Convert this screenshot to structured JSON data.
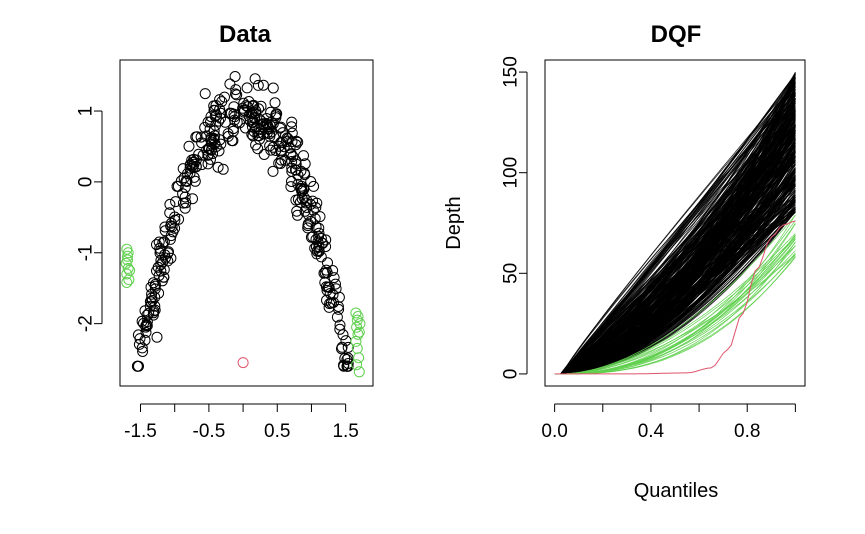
{
  "colors": {
    "normal": "#000000",
    "outlier": "#df536b",
    "tail": "#61d04f"
  },
  "chart_data": [
    {
      "type": "scatter",
      "title": "Data",
      "xlabel": "",
      "ylabel": "",
      "xlim": [
        -1.8,
        1.9
      ],
      "ylim": [
        -2.88,
        1.72
      ],
      "xticks": [
        -1.5,
        -1.0,
        -0.5,
        0.0,
        0.5,
        1.0,
        1.5
      ],
      "xtick_labels": [
        "-1.5",
        "",
        "-0.5",
        "",
        "0.5",
        "",
        "1.5"
      ],
      "yticks": [
        -2,
        -1,
        0,
        1
      ],
      "ytick_labels": [
        "-2",
        "-1",
        "0",
        "1"
      ],
      "curve": {
        "formula": "y = 1.0 - 1.5 * x^2",
        "n_points": 400,
        "x_range": [
          -1.55,
          1.55
        ],
        "noise_sd": 0.24
      },
      "tail_points": [
        [
          -1.7,
          -0.95
        ],
        [
          -1.69,
          -1.05
        ],
        [
          -1.71,
          -1.15
        ],
        [
          -1.68,
          -1.22
        ],
        [
          -1.7,
          -1.3
        ],
        [
          -1.67,
          -1.38
        ],
        [
          -1.69,
          -1.1
        ],
        [
          -1.66,
          -1.25
        ],
        [
          -1.7,
          -1.42
        ],
        [
          -1.68,
          -1.0
        ],
        [
          1.65,
          -1.85
        ],
        [
          1.67,
          -1.95
        ],
        [
          1.66,
          -2.05
        ],
        [
          1.68,
          -2.15
        ],
        [
          1.65,
          -2.25
        ],
        [
          1.7,
          -2.12
        ],
        [
          1.67,
          -2.35
        ],
        [
          1.69,
          -2.48
        ],
        [
          1.66,
          -2.58
        ],
        [
          1.7,
          -2.68
        ],
        [
          1.71,
          -2.0
        ],
        [
          1.68,
          -1.9
        ]
      ],
      "outlier_points": [
        [
          0.0,
          -2.55
        ]
      ],
      "grid": false
    },
    {
      "type": "line",
      "title": "DQF",
      "xlabel": "Quantiles",
      "ylabel": "Depth",
      "xlim": [
        -0.04,
        1.04
      ],
      "ylim": [
        -6.0,
        156.0
      ],
      "xticks": [
        0.0,
        0.2,
        0.4,
        0.6,
        0.8,
        1.0
      ],
      "xtick_labels": [
        "0.0",
        "",
        "0.4",
        "",
        "0.8",
        ""
      ],
      "yticks": [
        0,
        50,
        100,
        150
      ],
      "ytick_labels": [
        "0",
        "50",
        "100",
        "150"
      ],
      "series": [
        {
          "group": "normal",
          "count": 380,
          "end_depth_range": [
            80,
            150
          ],
          "curvature_range": [
            0.9,
            1.9
          ]
        },
        {
          "group": "tail",
          "count": 22,
          "end_depth_range": [
            57,
            80
          ],
          "curvature_range": [
            1.6,
            2.6
          ]
        },
        {
          "group": "outlier",
          "count": 1,
          "points": [
            [
              0.0,
              0.0
            ],
            [
              0.3,
              0.0
            ],
            [
              0.55,
              0.5
            ],
            [
              0.65,
              3.0
            ],
            [
              0.72,
              12.0
            ],
            [
              0.78,
              30.0
            ],
            [
              0.84,
              52.0
            ],
            [
              0.9,
              68.0
            ],
            [
              0.95,
              74.0
            ],
            [
              1.0,
              76.0
            ]
          ]
        }
      ],
      "grid": false
    }
  ]
}
